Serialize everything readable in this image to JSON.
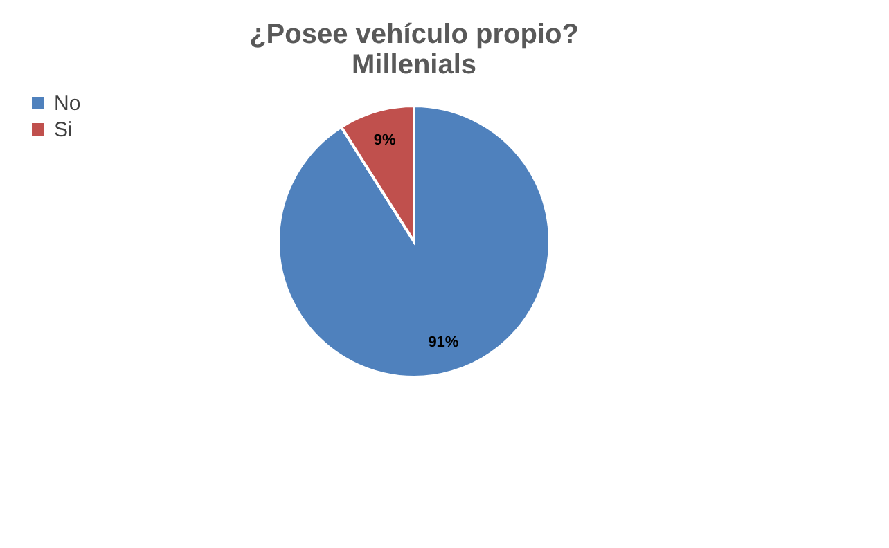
{
  "chart_data": {
    "type": "pie",
    "title": "¿Posee vehículo propio?\nMillenials",
    "categories": [
      "No",
      "Si"
    ],
    "values": [
      91,
      9
    ],
    "colors": [
      "#4f81bd",
      "#c0504d"
    ],
    "data_labels": true,
    "value_labels": [
      "91%",
      "9%"
    ],
    "legend": "left"
  }
}
